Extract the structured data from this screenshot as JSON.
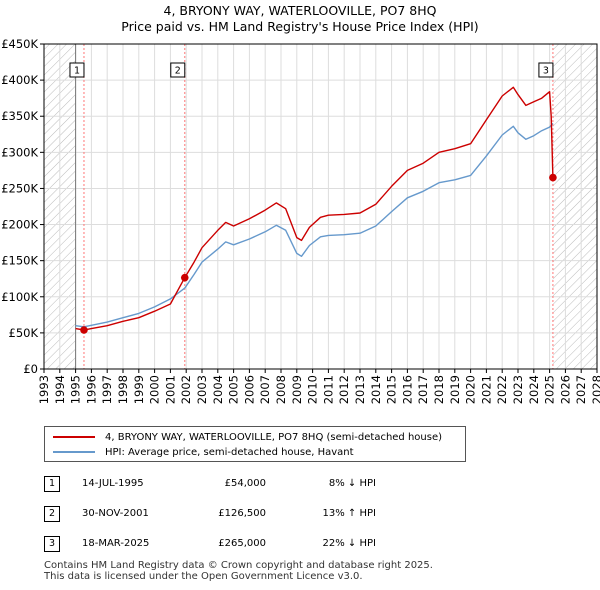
{
  "title": {
    "line1": "4, BRYONY WAY, WATERLOOVILLE, PO7 8HQ",
    "line2": "Price paid vs. HM Land Registry's House Price Index (HPI)"
  },
  "colors": {
    "price_paid": "#cc0000",
    "hpi": "#6699cc",
    "marker_line": "#ff7777",
    "grid": "#dddddd",
    "hatch": "#bbbbbb"
  },
  "legend": {
    "price_label": "4, BRYONY WAY, WATERLOOVILLE, PO7 8HQ (semi-detached house)",
    "hpi_label": "HPI: Average price, semi-detached house, Havant"
  },
  "transactions": [
    {
      "num": "1",
      "date": "14-JUL-1995",
      "price": "£54,000",
      "hpi": "8% ↓ HPI"
    },
    {
      "num": "2",
      "date": "30-NOV-2001",
      "price": "£126,500",
      "hpi": "13% ↑ HPI"
    },
    {
      "num": "3",
      "date": "18-MAR-2025",
      "price": "£265,000",
      "hpi": "22% ↓ HPI"
    }
  ],
  "footer": {
    "line1": "Contains HM Land Registry data © Crown copyright and database right 2025.",
    "line2": "This data is licensed under the Open Government Licence v3.0."
  },
  "chart_data": {
    "type": "line",
    "title": "4, BRYONY WAY, WATERLOOVILLE, PO7 8HQ",
    "subtitle": "Price paid vs. HM Land Registry's House Price Index (HPI)",
    "xlabel": "",
    "ylabel": "",
    "xlim": [
      1993,
      2028
    ],
    "ylim": [
      0,
      450000
    ],
    "x_ticks": [
      1993,
      1994,
      1995,
      1996,
      1997,
      1998,
      1999,
      2000,
      2001,
      2002,
      2003,
      2004,
      2005,
      2006,
      2007,
      2008,
      2009,
      2010,
      2011,
      2012,
      2013,
      2014,
      2015,
      2016,
      2017,
      2018,
      2019,
      2020,
      2021,
      2022,
      2023,
      2024,
      2025,
      2026,
      2027,
      2028
    ],
    "y_ticks": [
      0,
      50000,
      100000,
      150000,
      200000,
      250000,
      300000,
      350000,
      400000,
      450000
    ],
    "y_tick_labels": [
      "£0",
      "£50K",
      "£100K",
      "£150K",
      "£200K",
      "£250K",
      "£300K",
      "£350K",
      "£400K",
      "£450K"
    ],
    "grid": true,
    "hatched_ranges": [
      [
        1993,
        1995.0
      ],
      [
        2025.2,
        2028
      ]
    ],
    "series": [
      {
        "name": "4, BRYONY WAY, WATERLOOVILLE, PO7 8HQ (semi-detached house)",
        "x": [
          1995.0,
          1995.53,
          1996.0,
          1997.0,
          1998.0,
          1999.0,
          2000.0,
          2001.0,
          2001.91,
          2002.5,
          2003.0,
          2004.0,
          2004.5,
          2005.0,
          2006.0,
          2007.0,
          2007.7,
          2008.3,
          2009.0,
          2009.3,
          2009.8,
          2010.5,
          2011.0,
          2012.0,
          2013.0,
          2014.0,
          2015.0,
          2016.0,
          2017.0,
          2018.0,
          2019.0,
          2020.0,
          2021.0,
          2022.0,
          2022.7,
          2023.0,
          2023.5,
          2024.0,
          2024.5,
          2025.0,
          2025.1,
          2025.21
        ],
        "values": [
          56000,
          54000,
          56000,
          60000,
          66000,
          71000,
          80000,
          90000,
          126500,
          148000,
          168000,
          192000,
          203000,
          198000,
          208000,
          220000,
          230000,
          222000,
          182000,
          178000,
          196000,
          210000,
          213000,
          214000,
          216000,
          228000,
          253000,
          275000,
          285000,
          300000,
          305000,
          312000,
          345000,
          378000,
          390000,
          380000,
          365000,
          370000,
          375000,
          384000,
          350000,
          265000
        ]
      },
      {
        "name": "HPI: Average price, semi-detached house, Havant",
        "x": [
          1995.0,
          1995.53,
          1996.0,
          1997.0,
          1998.0,
          1999.0,
          2000.0,
          2001.0,
          2001.91,
          2002.5,
          2003.0,
          2004.0,
          2004.5,
          2005.0,
          2006.0,
          2007.0,
          2007.7,
          2008.3,
          2009.0,
          2009.3,
          2009.8,
          2010.5,
          2011.0,
          2012.0,
          2013.0,
          2014.0,
          2015.0,
          2016.0,
          2017.0,
          2018.0,
          2019.0,
          2020.0,
          2021.0,
          2022.0,
          2022.7,
          2023.0,
          2023.5,
          2024.0,
          2024.5,
          2025.0,
          2025.21
        ],
        "values": [
          60000,
          58500,
          60500,
          65000,
          71000,
          77000,
          86000,
          97000,
          112000,
          131000,
          148000,
          166000,
          176000,
          172000,
          180000,
          190000,
          199000,
          192000,
          160000,
          156000,
          171000,
          183000,
          185000,
          186000,
          188000,
          198000,
          218000,
          237000,
          246000,
          258000,
          262000,
          268000,
          295000,
          324000,
          336000,
          327000,
          318000,
          323000,
          330000,
          335000,
          340000
        ]
      }
    ],
    "sales": [
      {
        "label": "1",
        "x": 1995.53,
        "value": 54000
      },
      {
        "label": "2",
        "x": 2001.91,
        "value": 126500
      },
      {
        "label": "3",
        "x": 2025.21,
        "value": 265000
      }
    ]
  }
}
